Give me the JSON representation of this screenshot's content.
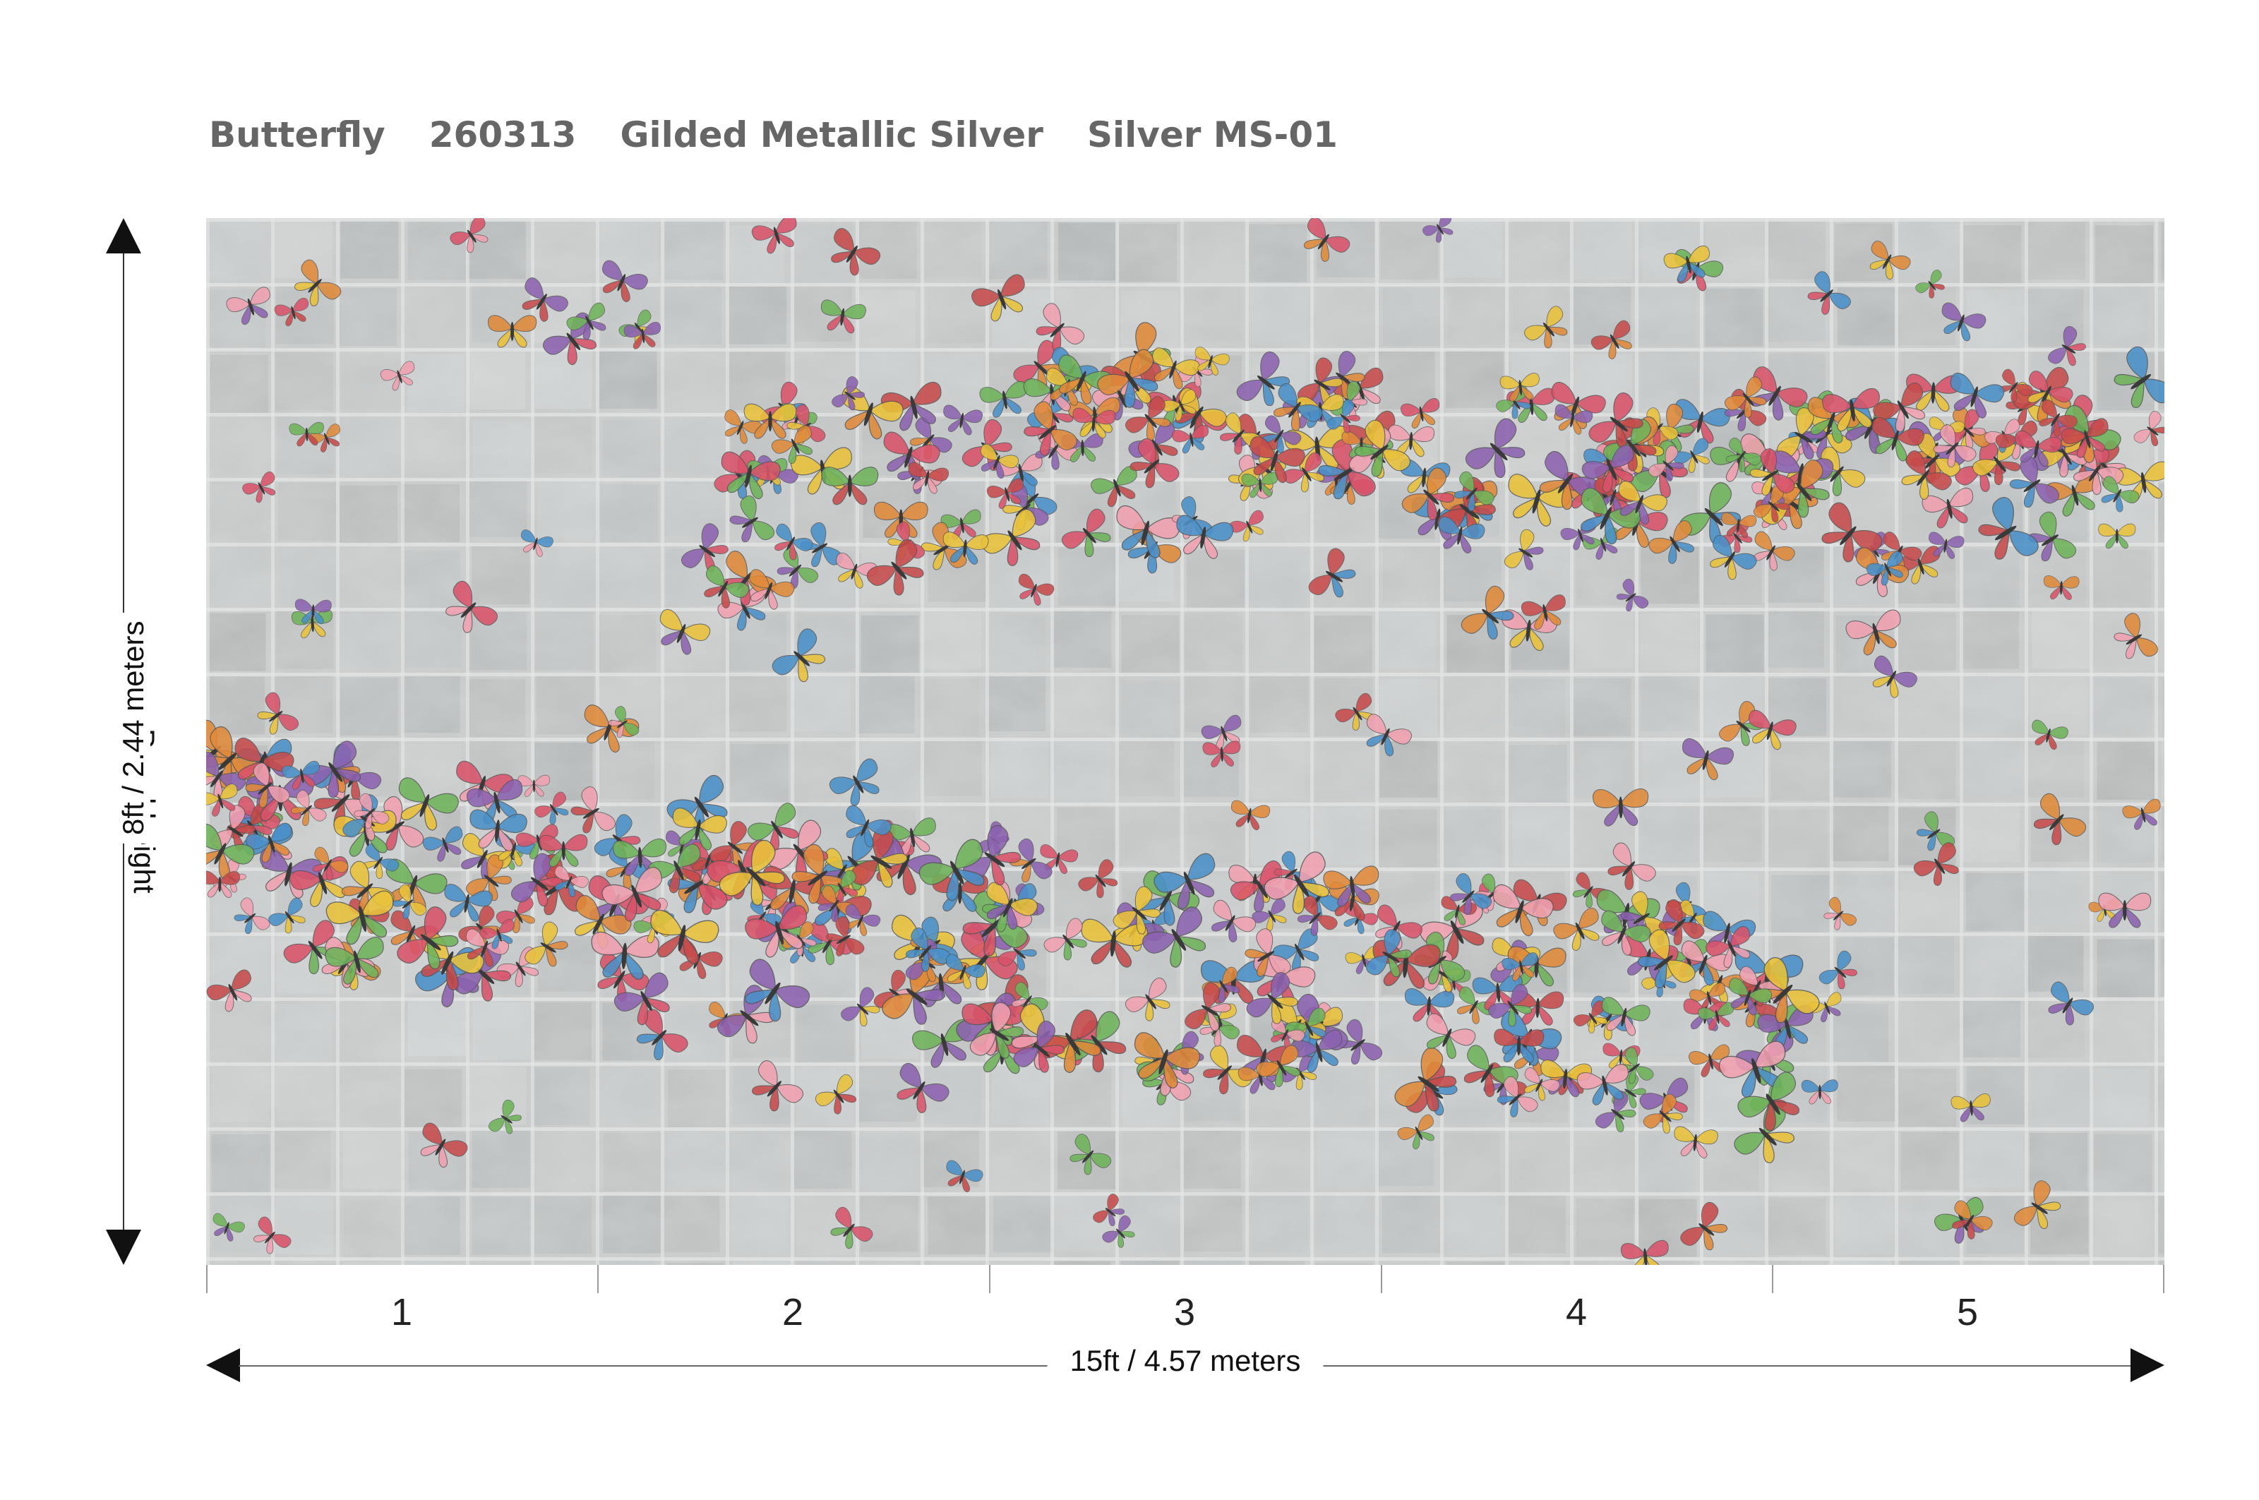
{
  "title": {
    "pattern": "Butterfly",
    "code": "260313",
    "finish": "Gilded Metallic Silver",
    "colorway": "Silver MS-01"
  },
  "panel": {
    "panel_numbers": [
      "1",
      "2",
      "3",
      "4",
      "5"
    ],
    "background_color": "#c9cbcb",
    "butterfly_colors": [
      "#d9536a",
      "#e08a3a",
      "#e9c23a",
      "#6fb35a",
      "#4a90c9",
      "#8c62b0",
      "#c74b4b",
      "#f0a0b0"
    ]
  },
  "dimensions": {
    "height_label_1": "Panel height",
    "height_label_2": "8ft / 2.44 meters",
    "width_label": "15ft  / 4.57 meters"
  }
}
